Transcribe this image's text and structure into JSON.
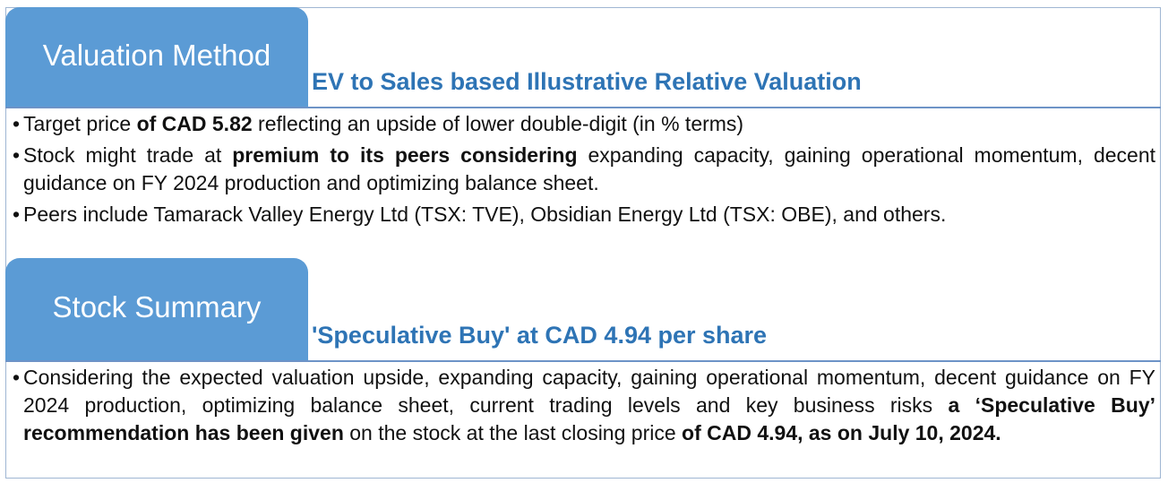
{
  "section1": {
    "tab_label": "Valuation Method",
    "heading": "EV to Sales based Illustrative Relative Valuation",
    "bullets": [
      [
        {
          "t": "Target price ",
          "b": false
        },
        {
          "t": "of CAD 5.82",
          "b": true
        },
        {
          "t": " reflecting an upside of lower double-digit (in % terms)",
          "b": false
        }
      ],
      [
        {
          "t": "Stock might trade at ",
          "b": false
        },
        {
          "t": "premium to its peers considering",
          "b": true
        },
        {
          "t": " expanding capacity, gaining operational momentum, decent guidance on FY 2024 production and optimizing balance sheet.",
          "b": false
        }
      ],
      [
        {
          "t": "Peers include Tamarack Valley Energy Ltd (TSX: TVE), Obsidian Energy Ltd (TSX: OBE), and others.",
          "b": false
        }
      ]
    ]
  },
  "section2": {
    "tab_label": "Stock Summary",
    "heading": "'Speculative Buy' at CAD 4.94 per share",
    "bullets": [
      [
        {
          "t": "Considering the expected valuation upside, expanding capacity, gaining operational momentum, decent guidance on FY 2024 production, optimizing balance sheet, current trading levels and key business risks ",
          "b": false
        },
        {
          "t": "a ‘Speculative Buy’ recommendation has been given",
          "b": true
        },
        {
          "t": " on the stock at the last closing price ",
          "b": false
        },
        {
          "t": "of CAD 4.94, as on July 10, 2024.",
          "b": true
        }
      ]
    ]
  }
}
